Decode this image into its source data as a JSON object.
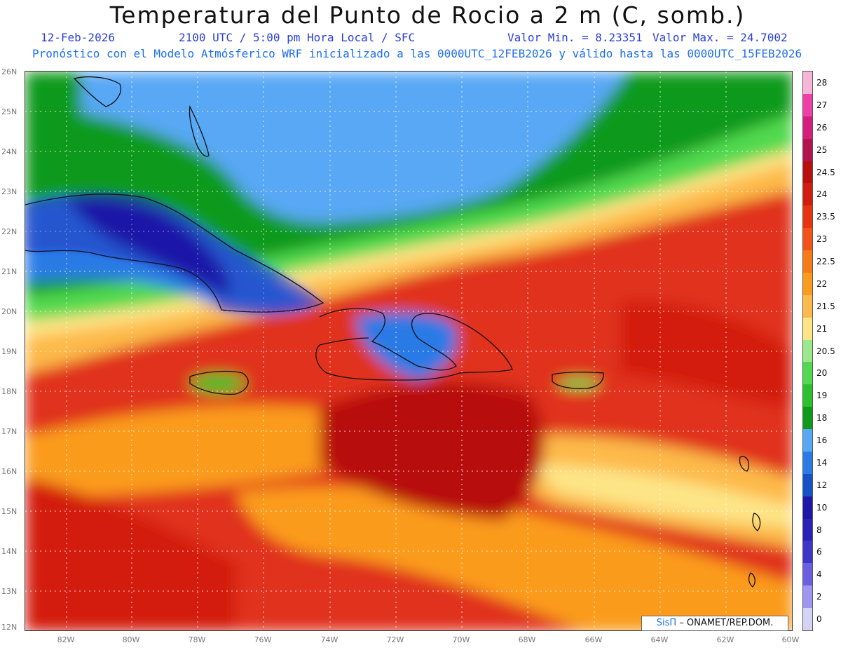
{
  "header": {
    "title": "Temperatura del Punto de Rocio a 2 m (C, somb.)",
    "date": "12-Feb-2026",
    "time": "2100 UTC / 5:00 pm Hora Local / SFC",
    "min_label": "Valor Min. = 8.23351",
    "max_label": "Valor Max. = 24.7002",
    "model_line": "Pronóstico con el Modelo Atmósferico WRF inicializado a las 0000UTC_12FEB2026 y válido hasta las  0000UTC_15FEB2026"
  },
  "axes": {
    "lat_labels": [
      "26N",
      "25N",
      "24N",
      "23N",
      "22N",
      "21N",
      "20N",
      "19N",
      "18N",
      "17N",
      "16N",
      "15N",
      "14N",
      "13N",
      "12N"
    ],
    "lon_labels": [
      "82W",
      "80W",
      "78W",
      "76W",
      "74W",
      "72W",
      "70W",
      "68W",
      "66W",
      "64W",
      "62W",
      "60W"
    ]
  },
  "colorbar": {
    "labels": [
      "28",
      "27",
      "26",
      "25",
      "24.5",
      "24",
      "23.5",
      "23",
      "22.5",
      "22",
      "21.5",
      "21",
      "20.5",
      "20",
      "19",
      "18",
      "16",
      "14",
      "12",
      "10",
      "8",
      "6",
      "4",
      "2",
      "0"
    ],
    "colors": [
      "#f7b5d8",
      "#ef3fa8",
      "#d51f7d",
      "#b4144e",
      "#b80f0f",
      "#d31b0e",
      "#e8340f",
      "#f3521a",
      "#f77a17",
      "#fb9b1e",
      "#fdb94a",
      "#fde587",
      "#9be88a",
      "#51d94f",
      "#2cc02e",
      "#0f9a1a",
      "#59a8f5",
      "#2b7ae6",
      "#1552c8",
      "#1e18a8",
      "#2a21b8",
      "#3e36c8",
      "#6a5fe0",
      "#a095f0",
      "#d4d3f5"
    ]
  },
  "credit": {
    "sis": "SisΠ",
    "org": "– ONAMET/REP.DOM."
  },
  "palette": {
    "title_blue": "#2a3fd8",
    "line_blue": "#1e6ff0"
  }
}
